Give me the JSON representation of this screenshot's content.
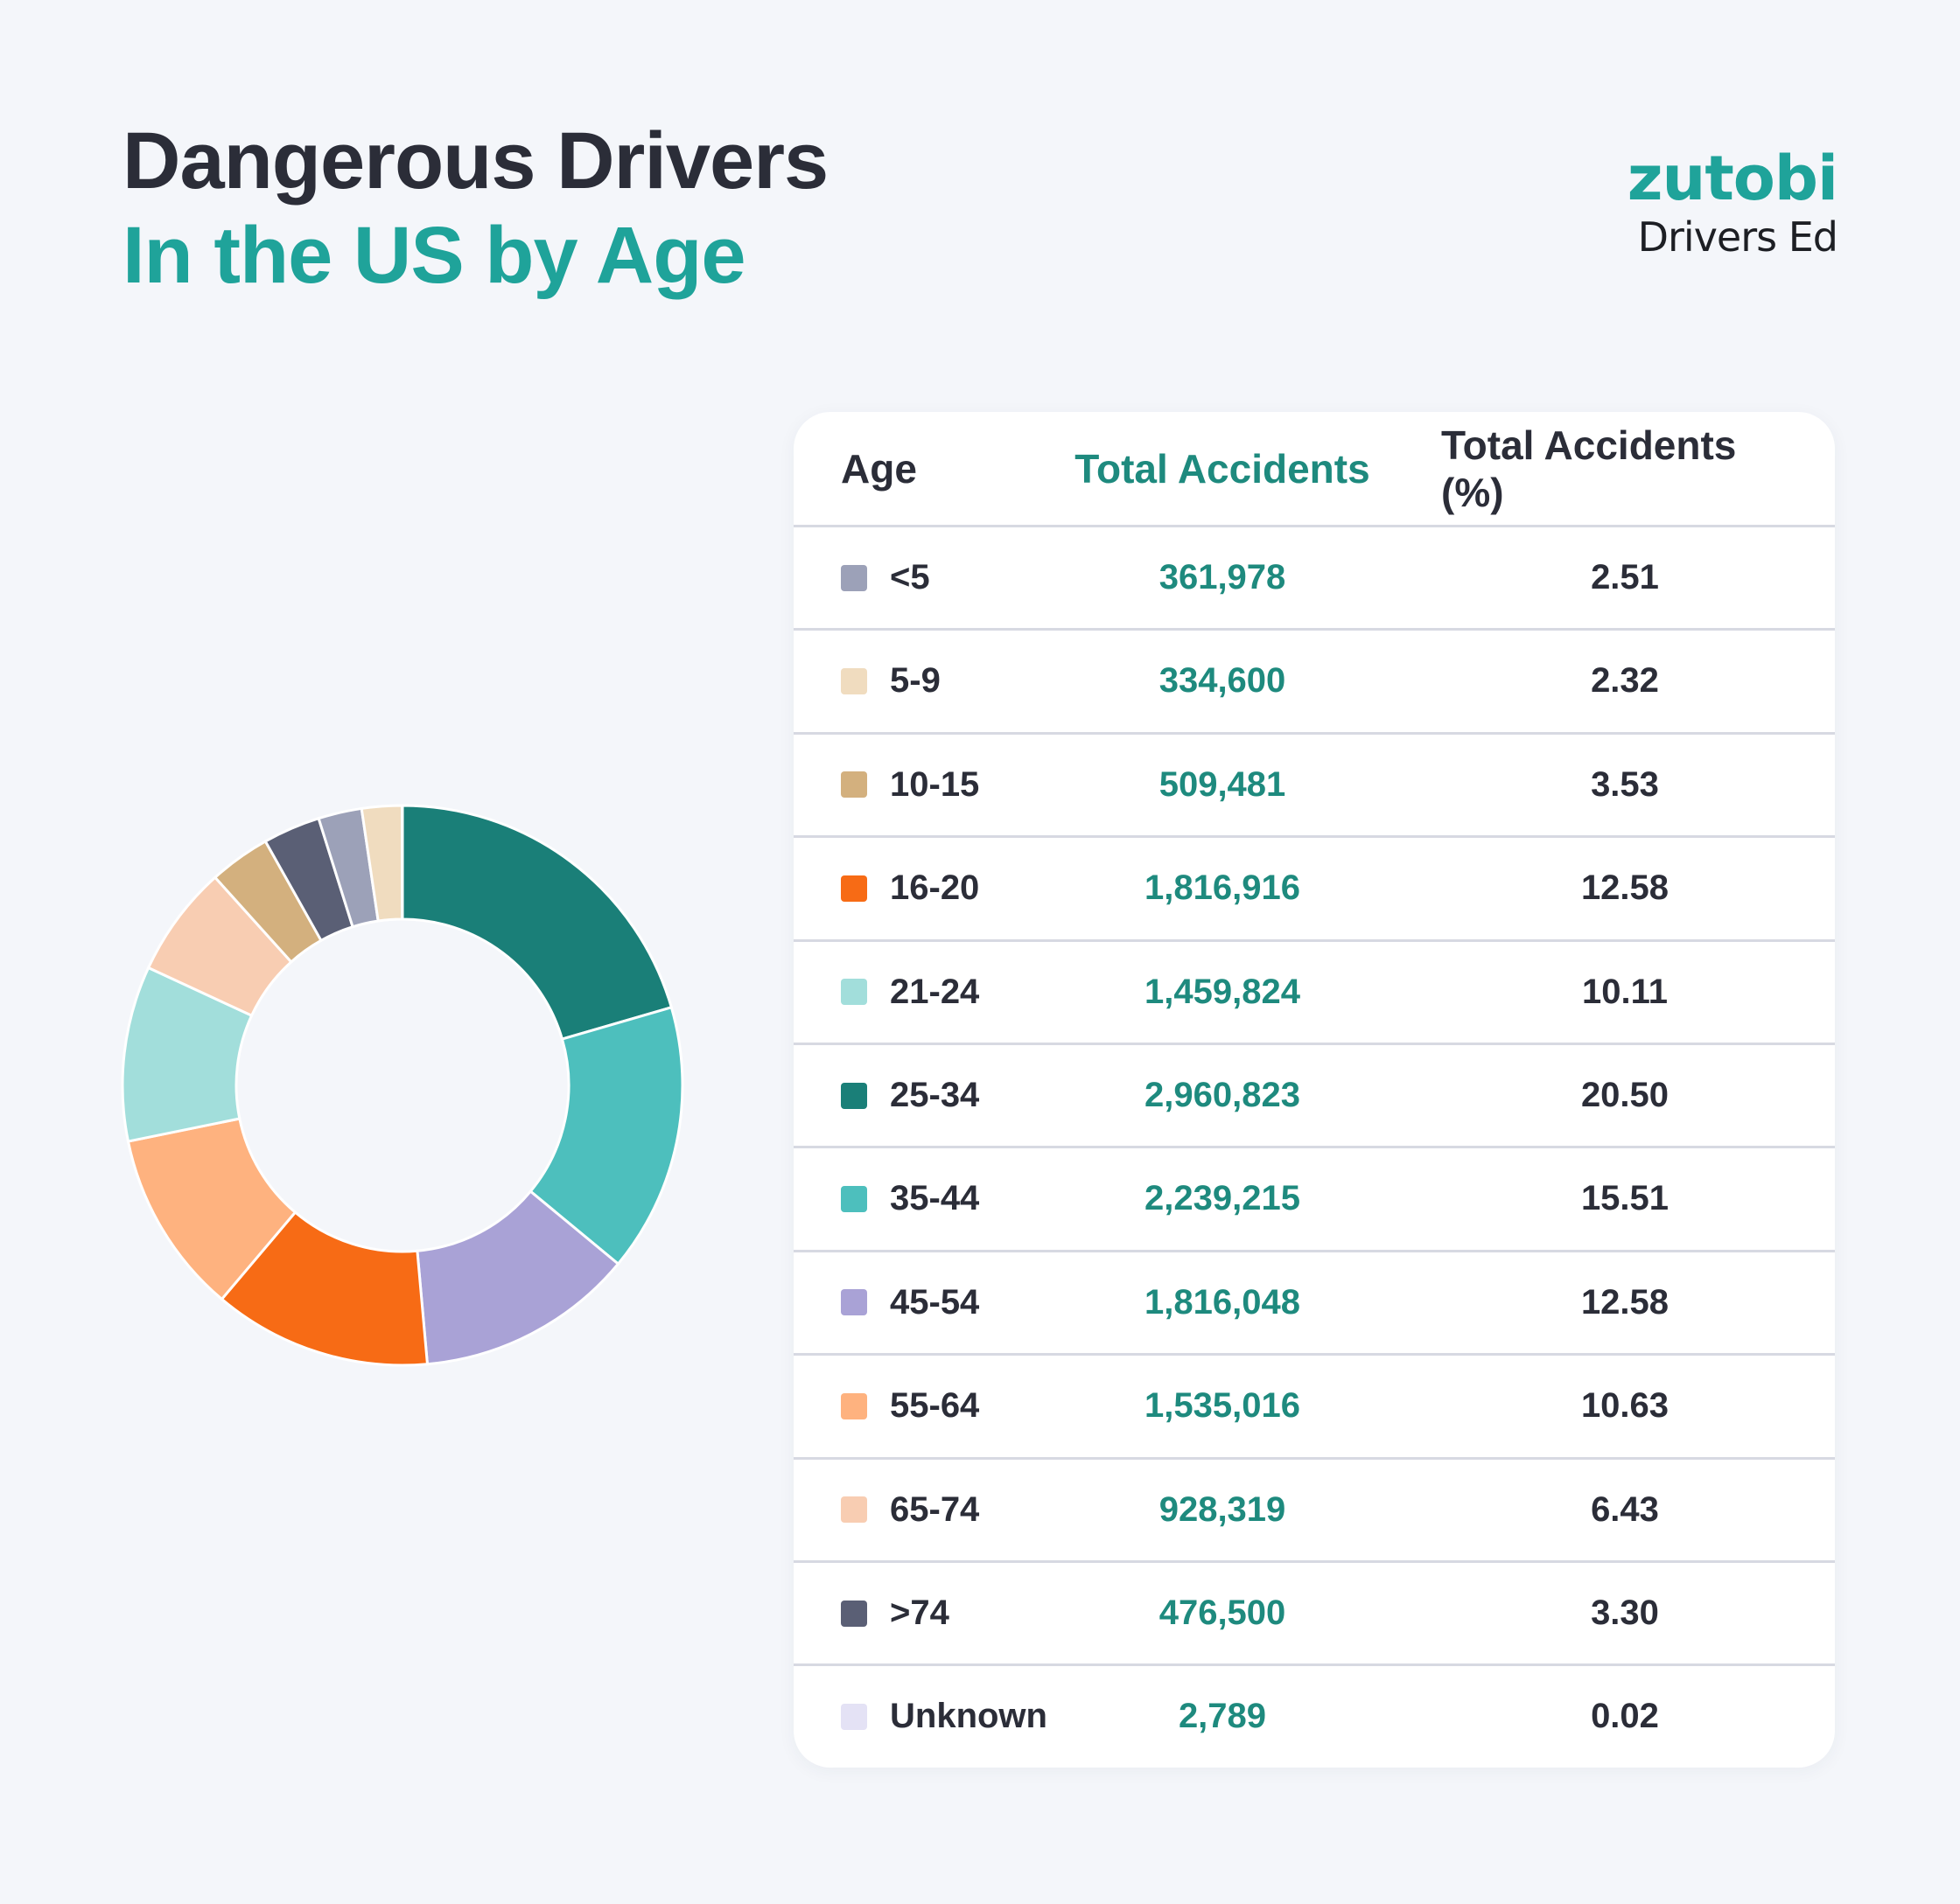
{
  "header": {
    "title_line1": "Dangerous Drivers",
    "title_line2": "In the US by Age"
  },
  "logo": {
    "brand": "zutobi",
    "tagline": "Drivers Ed"
  },
  "table": {
    "columns": [
      "Age",
      "Total Accidents",
      "Total Accidents (%)"
    ]
  },
  "chart_data": {
    "type": "pie",
    "subtype": "donut",
    "title": "",
    "rows": [
      {
        "label": "<5",
        "total": "361,978",
        "percent": "2.51",
        "value": 361978,
        "color": "#9ca1b8"
      },
      {
        "label": "5-9",
        "total": "334,600",
        "percent": "2.32",
        "value": 334600,
        "color": "#f0dcbf"
      },
      {
        "label": "10-15",
        "total": "509,481",
        "percent": "3.53",
        "value": 509481,
        "color": "#d3b07e"
      },
      {
        "label": "16-20",
        "total": "1,816,916",
        "percent": "12.58",
        "value": 1816916,
        "color": "#f76b15"
      },
      {
        "label": "21-24",
        "total": "1,459,824",
        "percent": "10.11",
        "value": 1459824,
        "color": "#a2dedb"
      },
      {
        "label": "25-34",
        "total": "2,960,823",
        "percent": "20.50",
        "value": 2960823,
        "color": "#1a7f78"
      },
      {
        "label": "35-44",
        "total": "2,239,215",
        "percent": "15.51",
        "value": 2239215,
        "color": "#4dbfbd"
      },
      {
        "label": "45-54",
        "total": "1,816,048",
        "percent": "12.58",
        "value": 1816048,
        "color": "#a9a2d6"
      },
      {
        "label": "55-64",
        "total": "1,535,016",
        "percent": "10.63",
        "value": 1535016,
        "color": "#feb27f"
      },
      {
        "label": "65-74",
        "total": "928,319",
        "percent": "6.43",
        "value": 928319,
        "color": "#f8cdb2"
      },
      {
        "label": ">74",
        "total": "476,500",
        "percent": "3.30",
        "value": 476500,
        "color": "#5a5f75"
      },
      {
        "label": "Unknown",
        "total": "2,789",
        "percent": "0.02",
        "value": 2789,
        "color": "#e4e2f5"
      }
    ],
    "donut_order_clockwise_from_top": [
      "25-34",
      "35-44",
      "45-54",
      "16-20",
      "55-64",
      "21-24",
      "65-74",
      "10-15",
      ">74",
      "<5",
      "5-9",
      "Unknown"
    ],
    "legend": "table-right"
  }
}
